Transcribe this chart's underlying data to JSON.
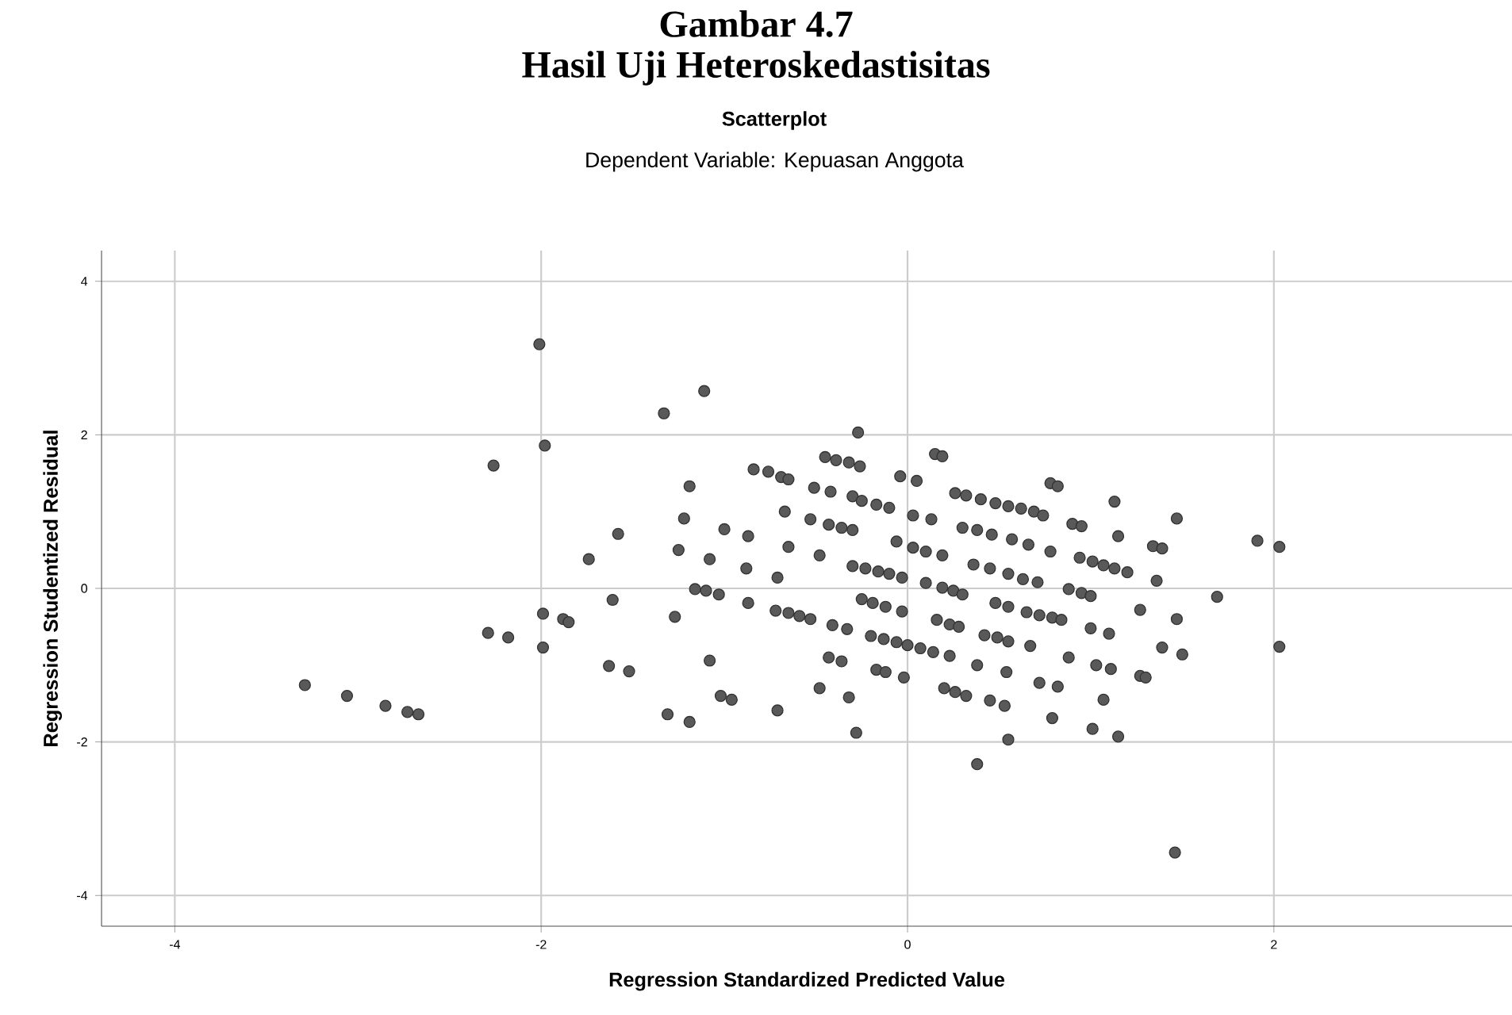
{
  "chart_data": {
    "type": "scatter",
    "annotations": [
      "Gambar 4.7",
      "Hasil Uji Heteroskedastisitas"
    ],
    "title": "Scatterplot",
    "subtitle": "Dependent Variable: Kepuasan Anggota",
    "xlabel": "Regression Standardized Predicted Value",
    "ylabel": "Regression Studentized Residual",
    "xlim": [
      -4.4,
      3.3
    ],
    "ylim": [
      -4.4,
      4.4
    ],
    "xticks": [
      -4,
      -2,
      0,
      2
    ],
    "yticks": [
      -4,
      -2,
      0,
      2,
      4
    ],
    "grid": true,
    "marker": "circle",
    "series": [
      {
        "color": "#595959",
        "x": [
          -2.01,
          -1.11,
          -1.33,
          -1.98,
          -2.26,
          -1.19,
          -1.22,
          -1.58,
          -1.0,
          -0.87,
          -1.74,
          -1.25,
          -1.08,
          -0.88,
          -1.16,
          -1.1,
          -1.03,
          -0.87,
          -1.61,
          -1.27,
          -1.99,
          -1.88,
          -1.85,
          -2.29,
          -2.18,
          -1.99,
          -1.08,
          -1.63,
          -1.52,
          -1.02,
          -0.96,
          -1.31,
          -1.19,
          -3.29,
          -3.06,
          -2.85,
          -2.73,
          -2.67,
          -0.27,
          0.15,
          0.19,
          -0.45,
          -0.39,
          -0.32,
          -0.26,
          -0.84,
          -0.76,
          -0.69,
          -0.65,
          -0.04,
          0.05,
          0.78,
          0.82,
          1.13,
          -0.51,
          -0.42,
          -0.3,
          -0.25,
          -0.17,
          -0.1,
          0.26,
          0.32,
          0.4,
          0.48,
          0.55,
          0.62,
          0.69,
          0.74,
          0.9,
          0.95,
          1.15,
          -0.67,
          -0.53,
          -0.43,
          -0.36,
          -0.3,
          0.03,
          0.13,
          0.3,
          0.38,
          0.46,
          0.57,
          0.66,
          0.78,
          -0.06,
          0.03,
          0.1,
          0.19,
          -0.65,
          -0.48,
          0.94,
          1.01,
          1.07,
          1.13,
          1.2,
          -0.3,
          -0.23,
          -0.16,
          -0.1,
          -0.03,
          0.36,
          0.45,
          0.55,
          0.63,
          0.71,
          -0.71,
          0.1,
          0.19,
          0.25,
          0.3,
          0.88,
          0.95,
          1.0,
          1.27,
          -0.25,
          -0.19,
          -0.12,
          -0.03,
          -0.72,
          -0.65,
          -0.59,
          -0.53,
          0.48,
          0.55,
          0.65,
          0.72,
          0.79,
          0.84,
          0.16,
          0.23,
          0.28,
          1.0,
          1.1,
          -0.41,
          -0.33,
          -0.2,
          -0.13,
          -0.06,
          0.0,
          0.07,
          0.14,
          0.23,
          0.42,
          0.49,
          0.55,
          0.67,
          0.38,
          0.54,
          0.88,
          1.03,
          1.11,
          1.27,
          -0.43,
          -0.36,
          -0.17,
          -0.12,
          -0.02,
          -0.48,
          -0.32,
          0.2,
          0.26,
          0.32,
          0.45,
          0.53,
          0.72,
          0.82,
          1.07,
          0.79,
          1.01,
          1.15,
          -0.71,
          -0.28,
          0.55,
          0.38,
          1.47,
          1.91,
          2.03,
          1.34,
          1.39,
          1.36,
          1.69,
          1.47,
          1.39,
          1.5,
          2.03,
          1.3,
          1.46
        ],
        "values": [
          3.18,
          2.57,
          2.28,
          1.86,
          1.6,
          1.33,
          0.91,
          0.71,
          0.77,
          0.68,
          0.38,
          0.5,
          0.38,
          0.26,
          -0.01,
          -0.03,
          -0.08,
          -0.19,
          -0.15,
          -0.37,
          -0.33,
          -0.4,
          -0.44,
          -0.58,
          -0.64,
          -0.77,
          -0.94,
          -1.01,
          -1.08,
          -1.4,
          -1.45,
          -1.64,
          -1.74,
          -1.26,
          -1.4,
          -1.53,
          -1.61,
          -1.64,
          2.03,
          1.75,
          1.72,
          1.71,
          1.67,
          1.64,
          1.59,
          1.55,
          1.52,
          1.45,
          1.42,
          1.46,
          1.4,
          1.37,
          1.33,
          1.13,
          1.31,
          1.26,
          1.2,
          1.14,
          1.09,
          1.05,
          1.24,
          1.21,
          1.16,
          1.11,
          1.07,
          1.04,
          1.0,
          0.95,
          0.84,
          0.81,
          0.68,
          1.0,
          0.9,
          0.83,
          0.79,
          0.76,
          0.95,
          0.9,
          0.79,
          0.76,
          0.7,
          0.64,
          0.57,
          0.48,
          0.61,
          0.53,
          0.48,
          0.43,
          0.54,
          0.43,
          0.4,
          0.35,
          0.3,
          0.26,
          0.21,
          0.29,
          0.26,
          0.22,
          0.19,
          0.14,
          0.31,
          0.26,
          0.19,
          0.12,
          0.08,
          0.14,
          0.07,
          0.01,
          -0.03,
          -0.08,
          -0.01,
          -0.06,
          -0.1,
          -0.28,
          -0.14,
          -0.19,
          -0.24,
          -0.3,
          -0.29,
          -0.32,
          -0.36,
          -0.4,
          -0.19,
          -0.24,
          -0.31,
          -0.35,
          -0.38,
          -0.41,
          -0.41,
          -0.47,
          -0.5,
          -0.52,
          -0.59,
          -0.48,
          -0.53,
          -0.62,
          -0.66,
          -0.7,
          -0.74,
          -0.78,
          -0.83,
          -0.88,
          -0.61,
          -0.64,
          -0.69,
          -0.75,
          -1.0,
          -1.09,
          -0.9,
          -1.0,
          -1.05,
          -1.14,
          -0.9,
          -0.95,
          -1.06,
          -1.09,
          -1.16,
          -1.3,
          -1.42,
          -1.3,
          -1.35,
          -1.4,
          -1.46,
          -1.53,
          -1.23,
          -1.28,
          -1.45,
          -1.69,
          -1.83,
          -1.93,
          -1.59,
          -1.88,
          -1.97,
          -2.29,
          0.91,
          0.62,
          0.54,
          0.55,
          0.52,
          0.1,
          -0.11,
          -0.4,
          -0.77,
          -0.86,
          -0.76,
          -1.16,
          -3.44
        ]
      }
    ]
  }
}
